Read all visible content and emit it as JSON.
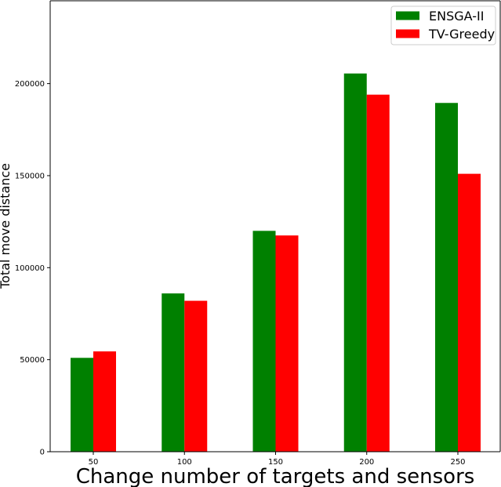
{
  "chart_data": {
    "type": "bar",
    "categories": [
      "50",
      "100",
      "150",
      "200",
      "250"
    ],
    "series": [
      {
        "name": "ENSGA-II",
        "color": "#008000",
        "values": [
          51000,
          86000,
          120000,
          205500,
          189500
        ]
      },
      {
        "name": "TV-Greedy",
        "color": "#ff0000",
        "values": [
          54500,
          82000,
          117500,
          194000,
          151000
        ]
      }
    ],
    "xlabel": "Change number of targets and sensors",
    "ylabel": "Total move distance",
    "ylim": [
      0,
      245000
    ],
    "yticks": [
      0,
      50000,
      100000,
      150000,
      200000
    ],
    "ytick_labels": [
      "0",
      "50000",
      "100000",
      "150000",
      "200000"
    ],
    "grid": false,
    "legend_position": "top-right"
  }
}
